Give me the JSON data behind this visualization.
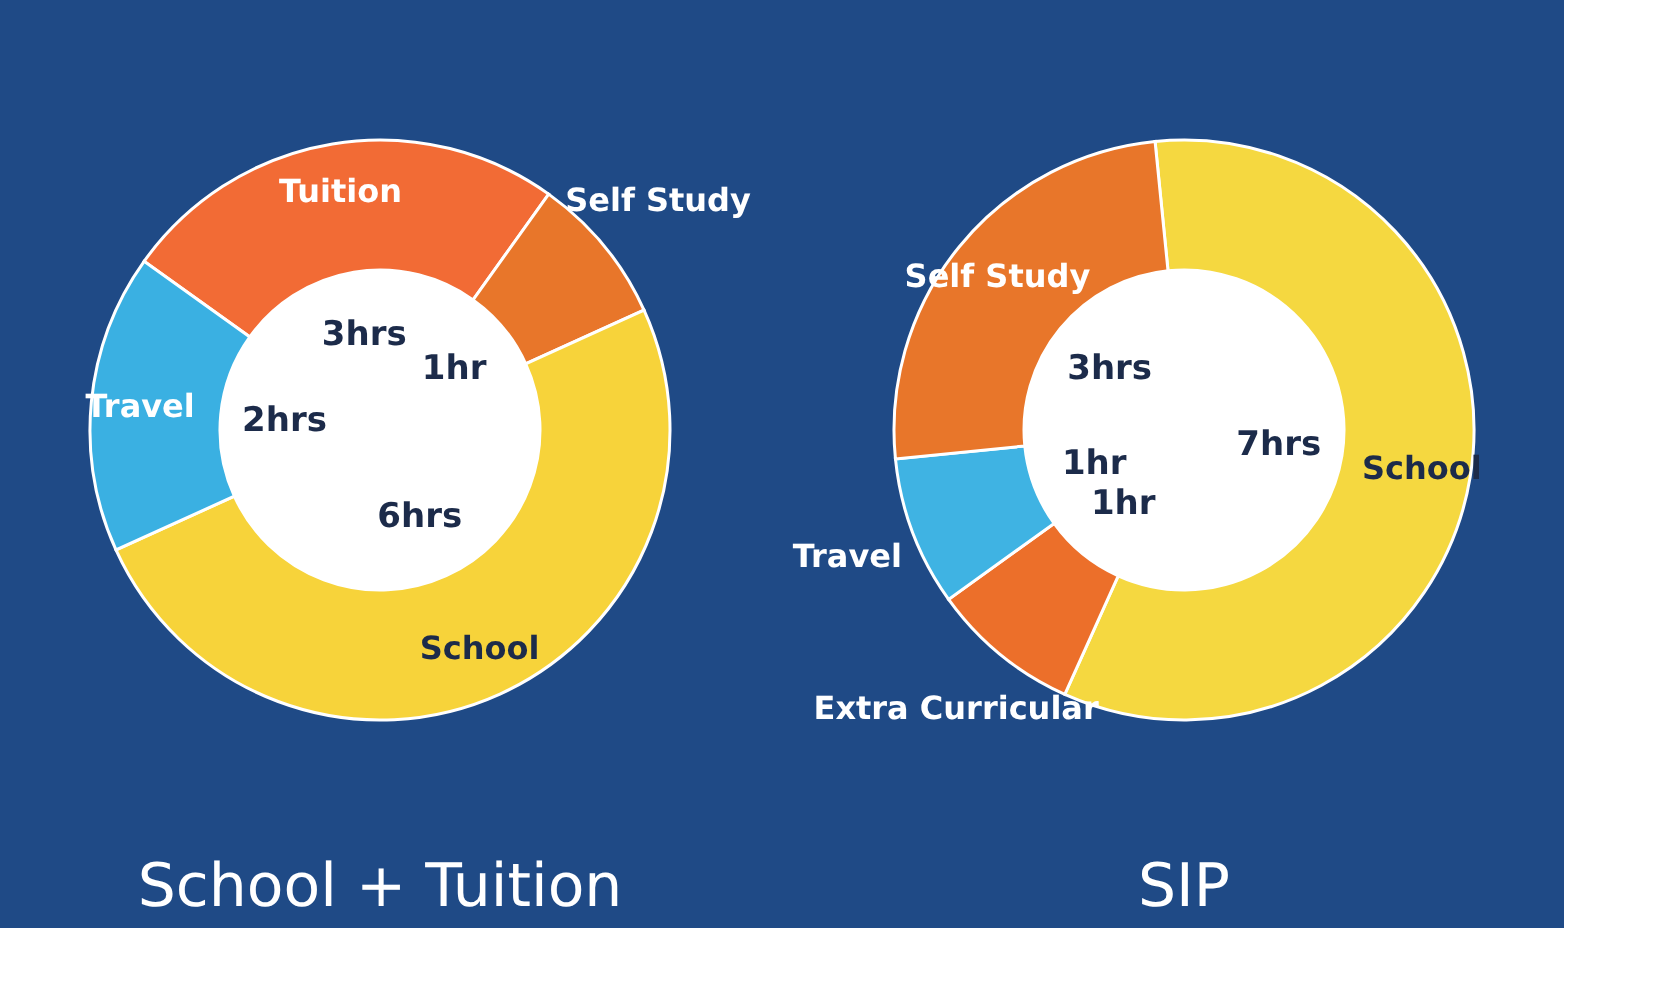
{
  "chart_data": [
    {
      "type": "donut",
      "title": "School + Tuition",
      "categories": [
        "Tuition",
        "Self Study",
        "School",
        "Travel"
      ],
      "values": [
        3,
        1,
        6,
        2
      ],
      "value_labels": [
        "3hrs",
        "1hr",
        "6hrs",
        "2hrs"
      ],
      "colors": [
        "#f26b35",
        "#e8762a",
        "#f7d33a",
        "#3ab0e2"
      ],
      "legend": false
    },
    {
      "type": "donut",
      "title": "SIP",
      "categories": [
        "School",
        "Extra Curricular",
        "Travel",
        "Self Study"
      ],
      "values": [
        7,
        1,
        1,
        3
      ],
      "value_labels": [
        "7hrs",
        "1hr",
        "1hr",
        "3hrs"
      ],
      "colors": [
        "#f5d840",
        "#ec6f2a",
        "#3fb3e3",
        "#e8762a"
      ],
      "legend": false
    }
  ]
}
